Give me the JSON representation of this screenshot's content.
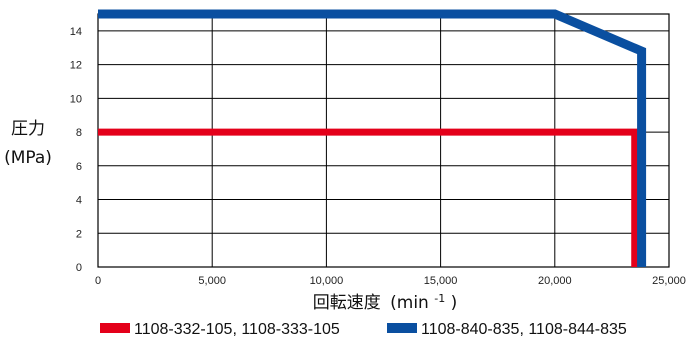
{
  "chart_data": {
    "type": "line",
    "xlabel": {
      "text": "回転速度",
      "unit_prefix": "(min",
      "unit_sup": "-1",
      "unit_suffix": ")"
    },
    "ylabel": {
      "line1": "圧力",
      "line2": "(MPa)"
    },
    "xlim": [
      0,
      25000
    ],
    "ylim": [
      0,
      15
    ],
    "x_ticks": [
      0,
      5000,
      10000,
      15000,
      20000,
      25000
    ],
    "x_tick_labels": [
      "0",
      "5,000",
      "10,000",
      "15,000",
      "20,000",
      "25,000"
    ],
    "y_ticks": [
      0,
      2,
      4,
      6,
      8,
      10,
      12,
      14
    ],
    "y_tick_labels": [
      "0",
      "2",
      "4",
      "6",
      "8",
      "10",
      "12",
      "14"
    ],
    "grid": true,
    "legend_position": "bottom",
    "series": [
      {
        "name": "1108-332-105, 1108-333-105",
        "color": "#e4001a",
        "points": [
          [
            0,
            8
          ],
          [
            23500,
            8
          ],
          [
            23500,
            0
          ]
        ]
      },
      {
        "name": "1108-840-835, 1108-844-835",
        "color": "#0a4fa0",
        "points": [
          [
            0,
            15
          ],
          [
            20000,
            15
          ],
          [
            23800,
            12.8
          ],
          [
            23800,
            0
          ]
        ]
      }
    ]
  }
}
